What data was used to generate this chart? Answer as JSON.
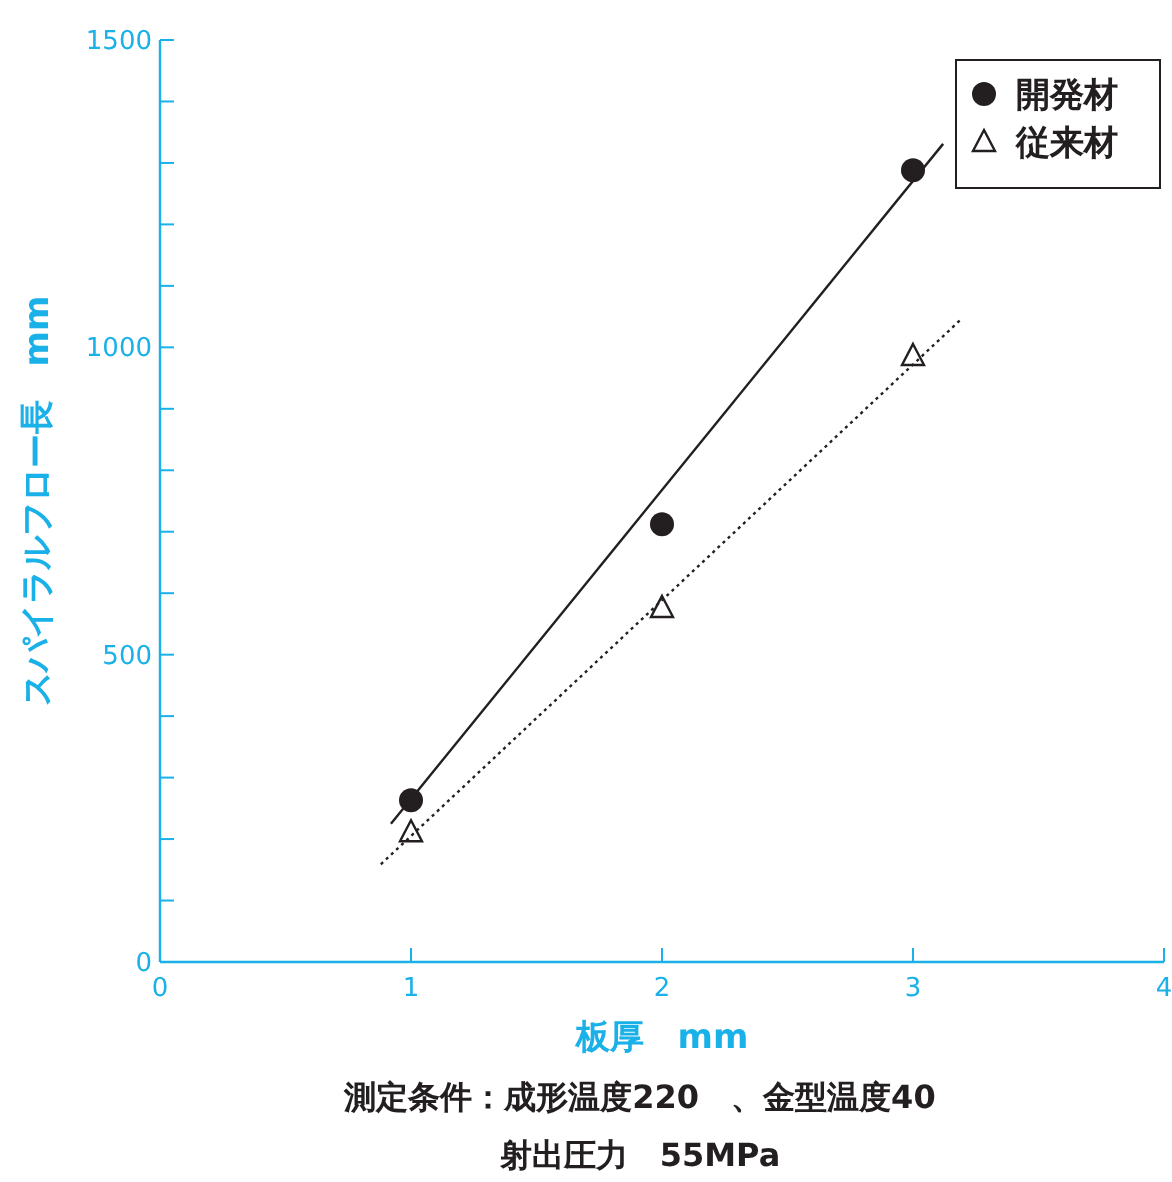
{
  "chart_data": {
    "type": "scatter",
    "xlabel": "板厚　mm",
    "ylabel": "スパイラルフロー長　mm",
    "xlim": [
      0,
      4
    ],
    "xticks": [
      0,
      1,
      2,
      3,
      4
    ],
    "ylim": [
      0,
      1500
    ],
    "yticks": [
      0,
      {
        "value": 100,
        "label": null
      },
      {
        "value": 200,
        "label": null
      },
      {
        "value": 300,
        "label": null
      },
      {
        "value": 400,
        "label": null
      },
      500,
      {
        "value": 600,
        "label": null
      },
      {
        "value": 700,
        "label": null
      },
      {
        "value": 800,
        "label": null
      },
      {
        "value": 900,
        "label": null
      },
      1000,
      {
        "value": 1100,
        "label": null
      },
      {
        "value": 1200,
        "label": null
      },
      {
        "value": 1300,
        "label": null
      },
      {
        "value": 1400,
        "label": null
      },
      1500
    ],
    "grid": false,
    "legend": "top right",
    "series": [
      {
        "name": "開発材",
        "marker": "circle",
        "color": "#231f20",
        "x": [
          1,
          2,
          3
        ],
        "values": [
          263,
          712,
          1288
        ]
      },
      {
        "name": "従来材",
        "marker": "triangle",
        "color": "#231f20",
        "x": [
          1,
          2,
          3
        ],
        "values": [
          211,
          576,
          986
        ]
      },
      {
        "type": "line",
        "marker": "none",
        "line_style": "solid",
        "color": "#231f20",
        "x": [
          0.92,
          3.12
        ],
        "values": [
          225,
          1331
        ]
      },
      {
        "type": "line",
        "marker": "none",
        "line_style": "dotted",
        "color": "#231f20",
        "x": [
          0.88,
          3.19
        ],
        "values": [
          159,
          1045
        ]
      }
    ],
    "annotations": [
      "測定条件：成形温度220　、金型温度40",
      "射出圧力　55MPa"
    ]
  }
}
